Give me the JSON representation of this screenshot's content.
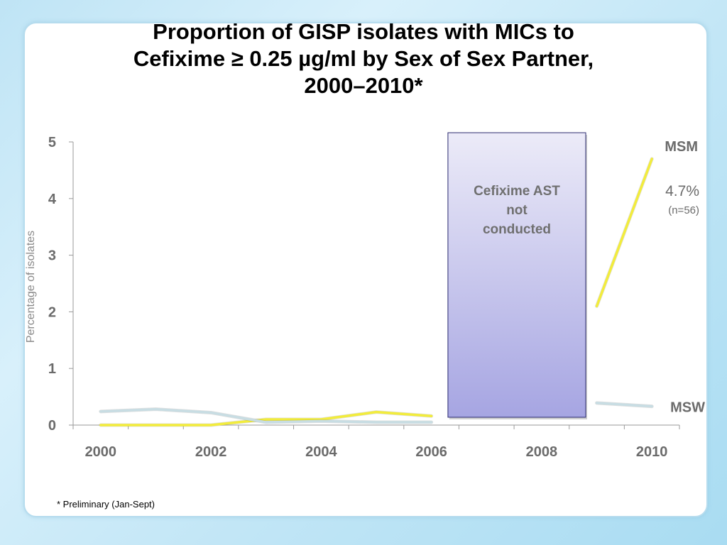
{
  "title": {
    "line1": "Proportion of GISP isolates with MICs to",
    "line2": "Cefixime ≥ 0.25 µg/ml by Sex of Sex Partner,",
    "line3": "2000–2010*"
  },
  "footnote": "* Preliminary (Jan-Sept)",
  "colors": {
    "msm": "#f2ec3c",
    "msw": "#c8dde3",
    "box_top": "#ecebf8",
    "box_bottom": "#a6a5e2",
    "box_border": "#2a2a6e",
    "axis": "#9a9a9a",
    "tick_text": "#6b6b6b"
  },
  "chart_data": {
    "type": "line",
    "title": "Proportion of GISP isolates with MICs to Cefixime ≥ 0.25 µg/ml by Sex of Sex Partner, 2000–2010*",
    "xlabel": "",
    "ylabel": "Percentage of isolates",
    "xlim": [
      1999.5,
      2010.5
    ],
    "ylim": [
      0,
      5
    ],
    "x_ticks": [
      "2000",
      "2002",
      "2004",
      "2006",
      "2008",
      "2010"
    ],
    "y_ticks": [
      "0",
      "1",
      "2",
      "3",
      "4",
      "5"
    ],
    "grid": false,
    "series": [
      {
        "name": "MSM",
        "segments": [
          {
            "x": [
              2000,
              2001,
              2002,
              2003,
              2004,
              2005,
              2006
            ],
            "y": [
              0,
              0,
              0,
              0.1,
              0.1,
              0.23,
              0.16
            ]
          },
          {
            "x": [
              2009,
              2010
            ],
            "y": [
              2.1,
              4.7
            ]
          }
        ]
      },
      {
        "name": "MSW",
        "segments": [
          {
            "x": [
              2000,
              2001,
              2002,
              2003,
              2004,
              2005,
              2006
            ],
            "y": [
              0.24,
              0.28,
              0.22,
              0.05,
              0.07,
              0.05,
              0.05
            ]
          },
          {
            "x": [
              2009,
              2010
            ],
            "y": [
              0.39,
              0.33
            ]
          }
        ]
      }
    ],
    "shaded_region": {
      "x_start": 2006.3,
      "x_end": 2008.8,
      "label_lines": [
        "Cefixime AST",
        "not",
        "conducted"
      ]
    },
    "annotations": {
      "msm_value": "4.7%",
      "msm_n": "(n=56)"
    }
  }
}
